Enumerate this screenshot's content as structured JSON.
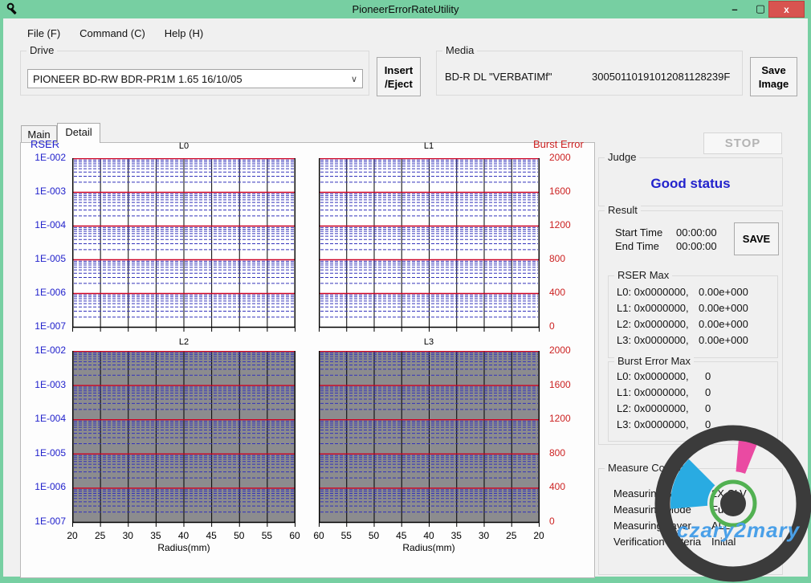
{
  "window": {
    "title": "PioneerErrorRateUtility",
    "controls": {
      "minimize": "–",
      "maximize": "▢",
      "close": "x"
    }
  },
  "menu": {
    "items": [
      {
        "label": "File (F)"
      },
      {
        "label": "Command (C)"
      },
      {
        "label": "Help (H)"
      }
    ]
  },
  "drive": {
    "label": "Drive",
    "selected": "PIONEER BD-RW BDR-PR1M  1.65 16/10/05",
    "insert_eject_button": [
      "Insert",
      "/Eject"
    ]
  },
  "media": {
    "label": "Media",
    "type": "BD-R DL \"VERBATIMf\"",
    "serial": "30050110191012081128239F",
    "save_image_button": [
      "Save",
      "Image"
    ]
  },
  "tabs": [
    {
      "label": "Main",
      "active": false
    },
    {
      "label": "Detail",
      "active": true
    }
  ],
  "right_panel": {
    "stop_button": "STOP",
    "judge": {
      "label": "Judge",
      "status": "Good status"
    },
    "result": {
      "label": "Result",
      "start_time_label": "Start Time",
      "start_time": "00:00:00",
      "end_time_label": "End Time",
      "end_time": "00:00:00",
      "save_button": "SAVE",
      "rser_max": {
        "label": "RSER Max",
        "rows": [
          {
            "label": "L0: 0x0000000,",
            "value": "0.00e+000"
          },
          {
            "label": "L1: 0x0000000,",
            "value": "0.00e+000"
          },
          {
            "label": "L2: 0x0000000,",
            "value": "0.00e+000"
          },
          {
            "label": "L3: 0x0000000,",
            "value": "0.00e+000"
          }
        ]
      },
      "burst_error_max": {
        "label": "Burst Error Max",
        "rows": [
          {
            "label": "L0: 0x0000000,",
            "value": "0"
          },
          {
            "label": "L1: 0x0000000,",
            "value": "0"
          },
          {
            "label": "L2: 0x0000000,",
            "value": "0"
          },
          {
            "label": "L3: 0x0000000,",
            "value": "0"
          }
        ]
      }
    },
    "measure_condition": {
      "label": "Measure Condition",
      "rows": [
        {
          "label": "Measuring Speed",
          "value": "2X CLV"
        },
        {
          "label": "Measuring Mode",
          "value": "Full"
        },
        {
          "label": "Measuring Layer",
          "value": "ALL"
        },
        {
          "label": "Verification Criteria",
          "value": "Initial"
        }
      ]
    }
  },
  "watermark": {
    "text": "czary2mary"
  },
  "colors": {
    "rser_axis": "#2222cc",
    "burst_axis": "#cc2222",
    "decade_line": "#cc0022",
    "minor_line": "#3333bb",
    "grid_vertical": "#000000",
    "title_bar": "#77cfa2",
    "close_button": "#d85450",
    "judge_status": "#2222cc"
  },
  "chart_data": [
    {
      "type": "line",
      "title": "L0",
      "x": {
        "label": "Radius(mm)",
        "ticks": [
          20,
          25,
          30,
          35,
          40,
          45,
          50,
          55,
          60
        ],
        "show_tick_labels": false
      },
      "y_left": {
        "label": "RSER",
        "scale": "log",
        "ticks": [
          "1E-002",
          "1E-003",
          "1E-004",
          "1E-005",
          "1E-006",
          "1E-007"
        ],
        "range": [
          1e-07,
          0.01
        ]
      },
      "y_right": {
        "label": "Burst Error",
        "ticks": [
          "2000",
          "1600",
          "1200",
          "800",
          "400",
          "0"
        ],
        "range": [
          0,
          2000
        ]
      },
      "series": [
        {
          "name": "RSER",
          "values": []
        },
        {
          "name": "Burst Error",
          "values": []
        }
      ],
      "plot_background": "#ffffff",
      "grid": true,
      "note": "no measured data plotted"
    },
    {
      "type": "line",
      "title": "L1",
      "x": {
        "label": "Radius(mm)",
        "ticks": [
          60,
          55,
          50,
          45,
          40,
          35,
          30,
          25,
          20
        ],
        "show_tick_labels": false
      },
      "y_left": {
        "label": "RSER",
        "scale": "log",
        "ticks": [
          "1E-002",
          "1E-003",
          "1E-004",
          "1E-005",
          "1E-006",
          "1E-007"
        ],
        "range": [
          1e-07,
          0.01
        ]
      },
      "y_right": {
        "label": "Burst Error",
        "ticks": [
          "2000",
          "1600",
          "1200",
          "800",
          "400",
          "0"
        ],
        "range": [
          0,
          2000
        ]
      },
      "series": [
        {
          "name": "RSER",
          "values": []
        },
        {
          "name": "Burst Error",
          "values": []
        }
      ],
      "plot_background": "#ffffff",
      "grid": true,
      "note": "no measured data plotted"
    },
    {
      "type": "line",
      "title": "L2",
      "x": {
        "label": "Radius(mm)",
        "ticks": [
          20,
          25,
          30,
          35,
          40,
          45,
          50,
          55,
          60
        ],
        "show_tick_labels": true
      },
      "y_left": {
        "label": "RSER",
        "scale": "log",
        "ticks": [
          "1E-002",
          "1E-003",
          "1E-004",
          "1E-005",
          "1E-006",
          "1E-007"
        ],
        "range": [
          1e-07,
          0.01
        ]
      },
      "y_right": {
        "label": "Burst Error",
        "ticks": [
          "2000",
          "1600",
          "1200",
          "800",
          "400",
          "0"
        ],
        "range": [
          0,
          2000
        ]
      },
      "series": [
        {
          "name": "RSER",
          "values": []
        },
        {
          "name": "Burst Error",
          "values": []
        }
      ],
      "plot_background": "#8c8c8e",
      "grid": true,
      "note": "layer not measured - grayed plot area"
    },
    {
      "type": "line",
      "title": "L3",
      "x": {
        "label": "Radius(mm)",
        "ticks": [
          60,
          55,
          50,
          45,
          40,
          35,
          30,
          25,
          20
        ],
        "show_tick_labels": true
      },
      "y_left": {
        "label": "RSER",
        "scale": "log",
        "ticks": [
          "1E-002",
          "1E-003",
          "1E-004",
          "1E-005",
          "1E-006",
          "1E-007"
        ],
        "range": [
          1e-07,
          0.01
        ]
      },
      "y_right": {
        "label": "Burst Error",
        "ticks": [
          "2000",
          "1600",
          "1200",
          "800",
          "400",
          "0"
        ],
        "range": [
          0,
          2000
        ]
      },
      "series": [
        {
          "name": "RSER",
          "values": []
        },
        {
          "name": "Burst Error",
          "values": []
        }
      ],
      "plot_background": "#8c8c8e",
      "grid": true,
      "note": "layer not measured - grayed plot area"
    }
  ]
}
